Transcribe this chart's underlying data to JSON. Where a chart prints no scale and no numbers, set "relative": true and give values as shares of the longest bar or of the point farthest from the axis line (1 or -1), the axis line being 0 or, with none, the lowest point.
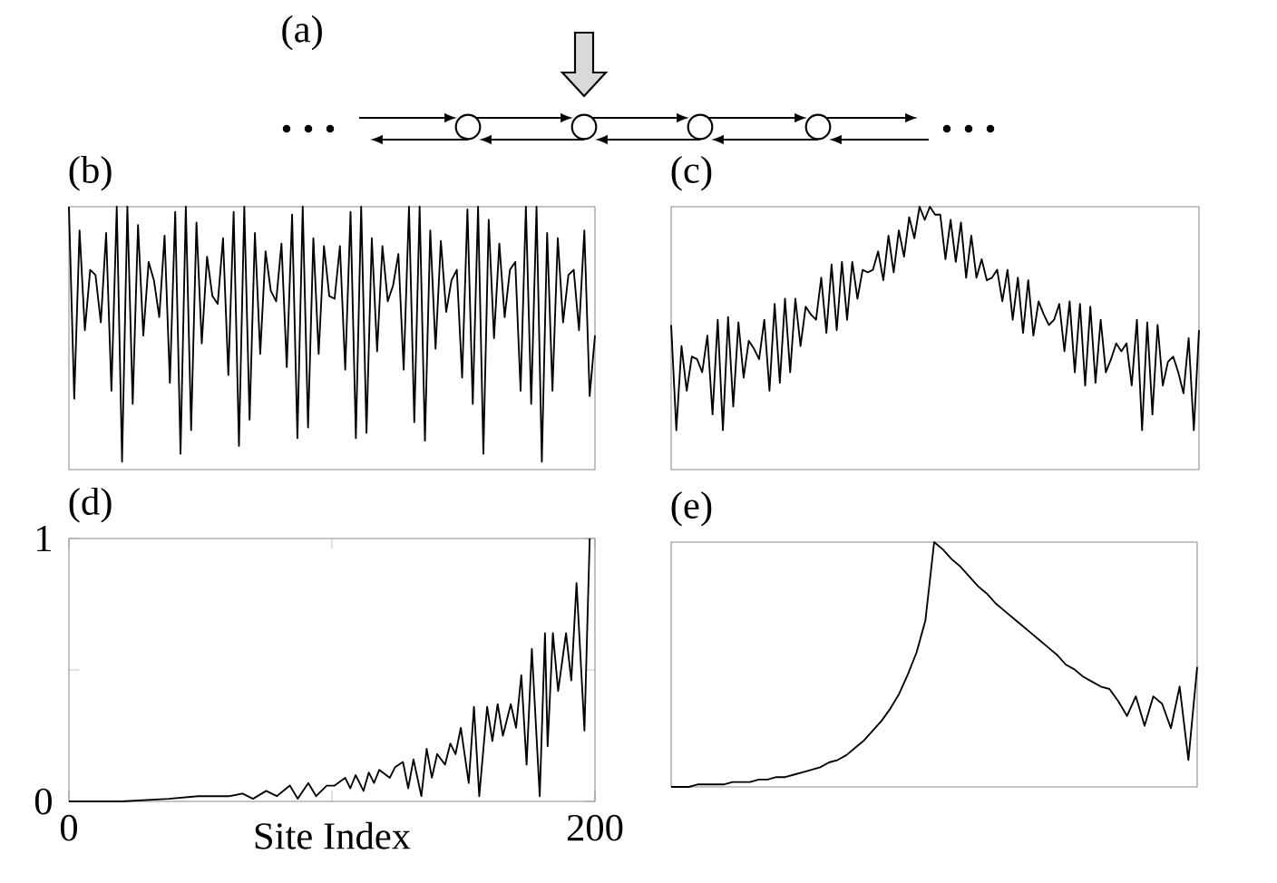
{
  "chart_data": [
    {
      "type": "other",
      "title": "(a)"
    },
    {
      "type": "line",
      "title": "(b)",
      "relative": true,
      "categories": [
        null,
        null,
        null,
        null,
        null,
        null,
        null,
        null,
        null,
        null,
        null,
        null,
        null,
        null,
        null,
        null,
        null,
        null,
        null,
        null,
        null,
        null,
        null,
        null,
        null,
        null,
        null,
        null,
        null,
        null,
        null,
        null,
        null,
        null,
        null,
        null,
        null,
        null,
        null,
        null,
        null,
        null,
        null,
        null,
        null,
        null,
        null,
        null,
        null,
        null,
        null,
        null,
        null,
        null,
        null,
        null,
        null,
        null,
        null,
        null,
        null,
        null,
        null,
        null,
        null,
        null,
        null,
        null,
        null,
        null,
        null,
        null,
        null,
        null,
        null,
        null,
        null,
        null,
        null,
        null,
        null,
        null,
        null,
        null,
        null,
        null,
        null,
        null,
        null,
        null,
        null,
        null,
        null,
        null,
        null,
        null,
        null,
        null,
        null,
        null
      ],
      "series": [
        {
          "color": "#000000",
          "values": [
            1.0,
            0.27,
            0.91,
            0.53,
            0.76,
            0.74,
            0.56,
            0.9,
            0.3,
            1.0,
            0.03,
            1.0,
            0.25,
            0.93,
            0.51,
            0.79,
            0.72,
            0.58,
            0.89,
            0.33,
            0.98,
            0.06,
            1.0,
            0.15,
            0.94,
            0.48,
            0.81,
            0.66,
            0.63,
            0.88,
            0.36,
            0.98,
            0.09,
            1.0,
            0.19,
            0.9,
            0.44,
            0.83,
            0.68,
            0.64,
            0.86,
            0.39,
            0.97,
            0.12,
            1.0,
            0.16,
            0.88,
            0.44,
            0.85,
            0.66,
            0.65,
            0.85,
            0.38,
            0.98,
            0.12,
            1.0,
            0.14,
            0.88,
            0.45,
            0.85,
            0.64,
            0.7,
            0.82,
            0.38,
            1.0,
            0.18,
            1.0,
            0.11,
            0.91,
            0.46,
            0.87,
            0.6,
            0.72,
            0.76,
            0.35,
            0.99,
            0.25,
            1.0,
            0.06,
            0.95,
            0.5,
            0.86,
            0.58,
            0.76,
            0.79,
            0.3,
            1.0,
            0.25,
            1.0,
            0.03,
            0.9,
            0.3,
            0.88,
            0.56,
            0.74,
            0.76,
            0.53,
            0.91,
            0.28,
            0.51
          ]
        }
      ]
    },
    {
      "type": "line",
      "title": "(c)",
      "relative": true,
      "categories": [
        null,
        null,
        null,
        null,
        null,
        null,
        null,
        null,
        null,
        null,
        null,
        null,
        null,
        null,
        null,
        null,
        null,
        null,
        null,
        null,
        null,
        null,
        null,
        null,
        null,
        null,
        null,
        null,
        null,
        null,
        null,
        null,
        null,
        null,
        null,
        null,
        null,
        null,
        null,
        null,
        null,
        null,
        null,
        null,
        null,
        null,
        null,
        null,
        null,
        null,
        null,
        null,
        null,
        null,
        null,
        null,
        null,
        null,
        null,
        null,
        null,
        null,
        null,
        null,
        null,
        null,
        null,
        null,
        null,
        null,
        null,
        null,
        null,
        null,
        null,
        null,
        null,
        null,
        null,
        null,
        null,
        null,
        null,
        null,
        null,
        null,
        null,
        null,
        null,
        null,
        null,
        null,
        null,
        null,
        null,
        null,
        null,
        null,
        null,
        null,
        null,
        null,
        null
      ],
      "series": [
        {
          "color": "#000000",
          "values": [
            0.55,
            0.15,
            0.47,
            0.3,
            0.43,
            0.42,
            0.37,
            0.51,
            0.21,
            0.57,
            0.15,
            0.58,
            0.24,
            0.56,
            0.35,
            0.49,
            0.46,
            0.42,
            0.57,
            0.3,
            0.63,
            0.33,
            0.65,
            0.37,
            0.65,
            0.47,
            0.62,
            0.59,
            0.57,
            0.73,
            0.52,
            0.78,
            0.53,
            0.79,
            0.57,
            0.79,
            0.65,
            0.76,
            0.75,
            0.76,
            0.83,
            0.72,
            0.89,
            0.75,
            0.91,
            0.81,
            0.96,
            0.88,
            1.0,
            0.95,
            1.0,
            0.97,
            0.97,
            0.8,
            0.95,
            0.79,
            0.94,
            0.73,
            0.89,
            0.73,
            0.8,
            0.72,
            0.73,
            0.76,
            0.64,
            0.76,
            0.57,
            0.73,
            0.52,
            0.72,
            0.51,
            0.64,
            0.59,
            0.55,
            0.57,
            0.63,
            0.45,
            0.64,
            0.37,
            0.63,
            0.32,
            0.62,
            0.33,
            0.57,
            0.37,
            0.42,
            0.48,
            0.45,
            0.48,
            0.32,
            0.57,
            0.15,
            0.56,
            0.21,
            0.55,
            0.32,
            0.41,
            0.43,
            0.37,
            0.29,
            0.5,
            0.15,
            0.53
          ]
        }
      ]
    },
    {
      "type": "line",
      "title": "(d)",
      "xlabel": "Site Index",
      "xlim": [
        0,
        200
      ],
      "xticks": [
        0,
        {
          "value": 100,
          "label": null
        },
        200
      ],
      "ylim": [
        0,
        1
      ],
      "yticks": [
        0,
        {
          "value": 0.5,
          "label": null
        },
        1
      ],
      "x": [
        0,
        20,
        38,
        49,
        61,
        66,
        70,
        75,
        79,
        84,
        87,
        91,
        94,
        98,
        101,
        105,
        107,
        109,
        112,
        114,
        116,
        118,
        122,
        124,
        127,
        129,
        131,
        134,
        136,
        138,
        140,
        143,
        145,
        147,
        149,
        152,
        154,
        156,
        159,
        161,
        163,
        165,
        168,
        170,
        172,
        174,
        176,
        179,
        181,
        182,
        184,
        186,
        189,
        191,
        193,
        196,
        198
      ],
      "series": [
        {
          "color": "#000000",
          "values": [
            0.0,
            0.0,
            0.01,
            0.02,
            0.02,
            0.03,
            0.01,
            0.04,
            0.02,
            0.06,
            0.01,
            0.07,
            0.02,
            0.06,
            0.06,
            0.09,
            0.05,
            0.1,
            0.04,
            0.11,
            0.07,
            0.12,
            0.09,
            0.13,
            0.15,
            0.05,
            0.16,
            0.02,
            0.2,
            0.09,
            0.18,
            0.14,
            0.22,
            0.18,
            0.28,
            0.07,
            0.36,
            0.02,
            0.36,
            0.23,
            0.37,
            0.25,
            0.37,
            0.28,
            0.48,
            0.14,
            0.58,
            0.02,
            0.64,
            0.21,
            0.64,
            0.42,
            0.64,
            0.46,
            0.83,
            0.27,
            1.0
          ]
        }
      ]
    },
    {
      "type": "line",
      "title": "(e)",
      "relative": true,
      "categories": [
        null,
        null,
        null,
        null,
        null,
        null,
        null,
        null,
        null,
        null,
        null,
        null,
        null,
        null,
        null,
        null,
        null,
        null,
        null,
        null,
        null,
        null,
        null,
        null,
        null,
        null,
        null,
        null,
        null,
        null,
        null,
        null,
        null,
        null,
        null,
        null,
        null,
        null,
        null,
        null,
        null,
        null,
        null,
        null,
        null,
        null,
        null,
        null,
        null,
        null,
        null,
        null,
        null,
        null,
        null,
        null,
        null,
        null,
        null,
        null,
        null
      ],
      "series": [
        {
          "color": "#000000",
          "values": [
            0.0,
            0.0,
            0.0,
            0.01,
            0.01,
            0.01,
            0.01,
            0.02,
            0.02,
            0.02,
            0.03,
            0.03,
            0.04,
            0.04,
            0.05,
            0.06,
            0.07,
            0.08,
            0.1,
            0.11,
            0.13,
            0.16,
            0.19,
            0.23,
            0.27,
            0.32,
            0.38,
            0.46,
            0.55,
            0.68,
            1.0,
            0.97,
            0.93,
            0.9,
            0.86,
            0.82,
            0.79,
            0.75,
            0.72,
            0.69,
            0.66,
            0.63,
            0.6,
            0.57,
            0.54,
            0.5,
            0.48,
            0.45,
            0.43,
            0.41,
            0.4,
            0.35,
            0.29,
            0.37,
            0.25,
            0.37,
            0.34,
            0.24,
            0.41,
            0.11,
            0.49
          ]
        }
      ]
    }
  ]
}
